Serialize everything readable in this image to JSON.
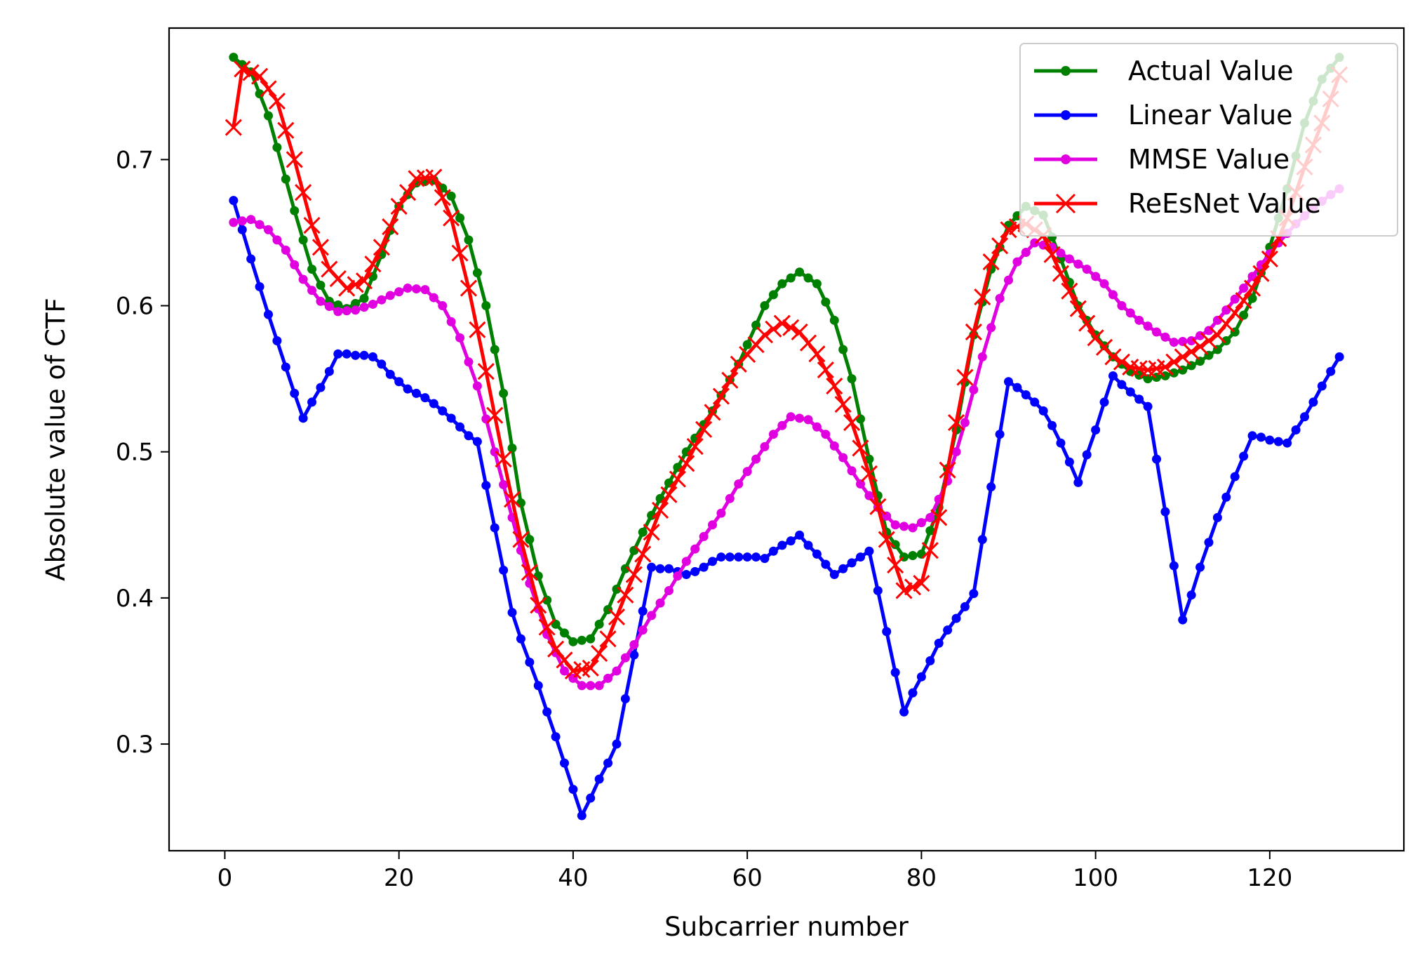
{
  "chart_data": {
    "type": "line",
    "title": "",
    "xlabel": "Subcarrier number",
    "ylabel": "Absolute value of CTF",
    "xlim": [
      -6.4,
      135.4
    ],
    "ylim": [
      0.227,
      0.79
    ],
    "xticks": [
      0,
      20,
      40,
      60,
      80,
      100,
      120
    ],
    "xtick_labels": [
      "0",
      "20",
      "40",
      "60",
      "80",
      "100",
      "120"
    ],
    "yticks": [
      0.3,
      0.4,
      0.5,
      0.6,
      0.7
    ],
    "ytick_labels": [
      "0.3",
      "0.4",
      "0.5",
      "0.6",
      "0.7"
    ],
    "grid": false,
    "legend": "top-right",
    "x_start": 1,
    "x_step": 1,
    "series": [
      {
        "name": "Actual Value",
        "color": "#008000",
        "marker": "dot",
        "anchors": [
          [
            1,
            0.77
          ],
          [
            3,
            0.76
          ],
          [
            5,
            0.73
          ],
          [
            8,
            0.665
          ],
          [
            10,
            0.625
          ],
          [
            12,
            0.603
          ],
          [
            14,
            0.598
          ],
          [
            16,
            0.605
          ],
          [
            18,
            0.635
          ],
          [
            20,
            0.668
          ],
          [
            22,
            0.684
          ],
          [
            24,
            0.686
          ],
          [
            26,
            0.675
          ],
          [
            28,
            0.645
          ],
          [
            30,
            0.6
          ],
          [
            32,
            0.54
          ],
          [
            34,
            0.465
          ],
          [
            36,
            0.415
          ],
          [
            38,
            0.382
          ],
          [
            40,
            0.37
          ],
          [
            42,
            0.372
          ],
          [
            44,
            0.392
          ],
          [
            46,
            0.42
          ],
          [
            48,
            0.445
          ],
          [
            50,
            0.468
          ],
          [
            53,
            0.5
          ],
          [
            56,
            0.528
          ],
          [
            59,
            0.56
          ],
          [
            62,
            0.6
          ],
          [
            64,
            0.615
          ],
          [
            66,
            0.623
          ],
          [
            68,
            0.615
          ],
          [
            70,
            0.59
          ],
          [
            72,
            0.55
          ],
          [
            74,
            0.495
          ],
          [
            76,
            0.445
          ],
          [
            78,
            0.428
          ],
          [
            80,
            0.43
          ],
          [
            82,
            0.462
          ],
          [
            84,
            0.515
          ],
          [
            86,
            0.58
          ],
          [
            88,
            0.625
          ],
          [
            90,
            0.655
          ],
          [
            92,
            0.668
          ],
          [
            94,
            0.662
          ],
          [
            96,
            0.632
          ],
          [
            98,
            0.6
          ],
          [
            100,
            0.58
          ],
          [
            102,
            0.565
          ],
          [
            104,
            0.555
          ],
          [
            106,
            0.55
          ],
          [
            108,
            0.552
          ],
          [
            110,
            0.556
          ],
          [
            112,
            0.562
          ],
          [
            114,
            0.57
          ],
          [
            116,
            0.582
          ],
          [
            118,
            0.605
          ],
          [
            120,
            0.64
          ],
          [
            122,
            0.68
          ],
          [
            124,
            0.725
          ],
          [
            126,
            0.755
          ],
          [
            128,
            0.77
          ]
        ]
      },
      {
        "name": "Linear Value",
        "color": "#0000ff",
        "marker": "dot",
        "anchors": [
          [
            1,
            0.672
          ],
          [
            2,
            0.652
          ],
          [
            3,
            0.632
          ],
          [
            4,
            0.613
          ],
          [
            5,
            0.594
          ],
          [
            6,
            0.576
          ],
          [
            7,
            0.558
          ],
          [
            8,
            0.54
          ],
          [
            9,
            0.523
          ],
          [
            10,
            0.534
          ],
          [
            11,
            0.544
          ],
          [
            12,
            0.555
          ],
          [
            13,
            0.567
          ],
          [
            14,
            0.567
          ],
          [
            15,
            0.566
          ],
          [
            16,
            0.566
          ],
          [
            17,
            0.565
          ],
          [
            18,
            0.56
          ],
          [
            19,
            0.553
          ],
          [
            20,
            0.548
          ],
          [
            21,
            0.543
          ],
          [
            22,
            0.54
          ],
          [
            23,
            0.537
          ],
          [
            24,
            0.533
          ],
          [
            25,
            0.528
          ],
          [
            26,
            0.523
          ],
          [
            27,
            0.517
          ],
          [
            28,
            0.511
          ],
          [
            29,
            0.507
          ],
          [
            30,
            0.477
          ],
          [
            31,
            0.448
          ],
          [
            32,
            0.419
          ],
          [
            33,
            0.39
          ],
          [
            34,
            0.372
          ],
          [
            35,
            0.356
          ],
          [
            36,
            0.34
          ],
          [
            37,
            0.322
          ],
          [
            38,
            0.305
          ],
          [
            39,
            0.287
          ],
          [
            40,
            0.269
          ],
          [
            41,
            0.251
          ],
          [
            42,
            0.263
          ],
          [
            43,
            0.276
          ],
          [
            44,
            0.287
          ],
          [
            45,
            0.3
          ],
          [
            46,
            0.331
          ],
          [
            47,
            0.361
          ],
          [
            48,
            0.391
          ],
          [
            49,
            0.421
          ],
          [
            50,
            0.42
          ],
          [
            51,
            0.42
          ],
          [
            52,
            0.418
          ],
          [
            53,
            0.416
          ],
          [
            54,
            0.418
          ],
          [
            55,
            0.421
          ],
          [
            56,
            0.425
          ],
          [
            57,
            0.428
          ],
          [
            58,
            0.428
          ],
          [
            59,
            0.428
          ],
          [
            60,
            0.428
          ],
          [
            61,
            0.428
          ],
          [
            62,
            0.427
          ],
          [
            63,
            0.432
          ],
          [
            64,
            0.436
          ],
          [
            65,
            0.439
          ],
          [
            66,
            0.443
          ],
          [
            67,
            0.436
          ],
          [
            68,
            0.43
          ],
          [
            69,
            0.423
          ],
          [
            70,
            0.416
          ],
          [
            71,
            0.42
          ],
          [
            72,
            0.424
          ],
          [
            73,
            0.428
          ],
          [
            74,
            0.432
          ],
          [
            75,
            0.405
          ],
          [
            76,
            0.377
          ],
          [
            77,
            0.349
          ],
          [
            78,
            0.322
          ],
          [
            79,
            0.335
          ],
          [
            80,
            0.346
          ],
          [
            81,
            0.357
          ],
          [
            82,
            0.369
          ],
          [
            83,
            0.378
          ],
          [
            84,
            0.386
          ],
          [
            85,
            0.394
          ],
          [
            86,
            0.403
          ],
          [
            87,
            0.44
          ],
          [
            88,
            0.476
          ],
          [
            89,
            0.512
          ],
          [
            90,
            0.548
          ],
          [
            91,
            0.544
          ],
          [
            92,
            0.539
          ],
          [
            93,
            0.534
          ],
          [
            94,
            0.528
          ],
          [
            95,
            0.518
          ],
          [
            96,
            0.506
          ],
          [
            97,
            0.493
          ],
          [
            98,
            0.479
          ],
          [
            99,
            0.498
          ],
          [
            100,
            0.515
          ],
          [
            101,
            0.534
          ],
          [
            102,
            0.552
          ],
          [
            103,
            0.546
          ],
          [
            104,
            0.541
          ],
          [
            105,
            0.536
          ],
          [
            106,
            0.531
          ],
          [
            107,
            0.495
          ],
          [
            108,
            0.459
          ],
          [
            109,
            0.422
          ],
          [
            110,
            0.385
          ],
          [
            111,
            0.402
          ],
          [
            112,
            0.421
          ],
          [
            113,
            0.438
          ],
          [
            114,
            0.455
          ],
          [
            115,
            0.469
          ],
          [
            116,
            0.483
          ],
          [
            117,
            0.497
          ],
          [
            118,
            0.511
          ],
          [
            119,
            0.51
          ],
          [
            120,
            0.508
          ],
          [
            121,
            0.507
          ],
          [
            122,
            0.506
          ],
          [
            123,
            0.515
          ],
          [
            124,
            0.524
          ],
          [
            125,
            0.534
          ],
          [
            126,
            0.545
          ],
          [
            127,
            0.555
          ],
          [
            128,
            0.565
          ]
        ]
      },
      {
        "name": "MMSE Value",
        "color": "#e000e0",
        "marker": "dot",
        "anchors": [
          [
            1,
            0.657
          ],
          [
            3,
            0.659
          ],
          [
            5,
            0.652
          ],
          [
            7,
            0.638
          ],
          [
            9,
            0.618
          ],
          [
            11,
            0.603
          ],
          [
            13,
            0.596
          ],
          [
            15,
            0.597
          ],
          [
            17,
            0.601
          ],
          [
            19,
            0.607
          ],
          [
            21,
            0.612
          ],
          [
            23,
            0.611
          ],
          [
            25,
            0.6
          ],
          [
            27,
            0.578
          ],
          [
            29,
            0.545
          ],
          [
            31,
            0.5
          ],
          [
            33,
            0.455
          ],
          [
            35,
            0.41
          ],
          [
            37,
            0.375
          ],
          [
            39,
            0.35
          ],
          [
            41,
            0.34
          ],
          [
            43,
            0.34
          ],
          [
            45,
            0.35
          ],
          [
            47,
            0.368
          ],
          [
            49,
            0.388
          ],
          [
            51,
            0.405
          ],
          [
            53,
            0.425
          ],
          [
            55,
            0.442
          ],
          [
            57,
            0.458
          ],
          [
            59,
            0.478
          ],
          [
            61,
            0.495
          ],
          [
            63,
            0.512
          ],
          [
            65,
            0.524
          ],
          [
            67,
            0.522
          ],
          [
            69,
            0.512
          ],
          [
            71,
            0.496
          ],
          [
            73,
            0.478
          ],
          [
            75,
            0.462
          ],
          [
            77,
            0.45
          ],
          [
            79,
            0.448
          ],
          [
            81,
            0.455
          ],
          [
            83,
            0.48
          ],
          [
            85,
            0.52
          ],
          [
            87,
            0.565
          ],
          [
            89,
            0.605
          ],
          [
            91,
            0.63
          ],
          [
            93,
            0.643
          ],
          [
            95,
            0.64
          ],
          [
            97,
            0.632
          ],
          [
            99,
            0.625
          ],
          [
            101,
            0.615
          ],
          [
            103,
            0.6
          ],
          [
            105,
            0.59
          ],
          [
            107,
            0.582
          ],
          [
            109,
            0.575
          ],
          [
            111,
            0.576
          ],
          [
            113,
            0.583
          ],
          [
            115,
            0.597
          ],
          [
            117,
            0.612
          ],
          [
            119,
            0.628
          ],
          [
            121,
            0.643
          ],
          [
            123,
            0.656
          ],
          [
            125,
            0.667
          ],
          [
            127,
            0.676
          ],
          [
            128,
            0.68
          ]
        ]
      },
      {
        "name": "ReEsNet Value",
        "color": "#ff0000",
        "marker": "x",
        "anchors": [
          [
            1,
            0.722
          ],
          [
            2,
            0.762
          ],
          [
            4,
            0.757
          ],
          [
            6,
            0.74
          ],
          [
            8,
            0.7
          ],
          [
            10,
            0.655
          ],
          [
            12,
            0.625
          ],
          [
            14,
            0.612
          ],
          [
            16,
            0.617
          ],
          [
            18,
            0.64
          ],
          [
            20,
            0.668
          ],
          [
            22,
            0.687
          ],
          [
            24,
            0.688
          ],
          [
            26,
            0.66
          ],
          [
            28,
            0.612
          ],
          [
            30,
            0.555
          ],
          [
            32,
            0.495
          ],
          [
            34,
            0.44
          ],
          [
            36,
            0.395
          ],
          [
            38,
            0.365
          ],
          [
            40,
            0.35
          ],
          [
            42,
            0.352
          ],
          [
            44,
            0.372
          ],
          [
            46,
            0.402
          ],
          [
            48,
            0.43
          ],
          [
            50,
            0.46
          ],
          [
            53,
            0.492
          ],
          [
            56,
            0.527
          ],
          [
            59,
            0.56
          ],
          [
            62,
            0.58
          ],
          [
            64,
            0.588
          ],
          [
            66,
            0.582
          ],
          [
            68,
            0.567
          ],
          [
            70,
            0.545
          ],
          [
            72,
            0.52
          ],
          [
            74,
            0.485
          ],
          [
            76,
            0.44
          ],
          [
            78,
            0.405
          ],
          [
            80,
            0.41
          ],
          [
            82,
            0.455
          ],
          [
            84,
            0.52
          ],
          [
            86,
            0.582
          ],
          [
            88,
            0.63
          ],
          [
            90,
            0.652
          ],
          [
            92,
            0.656
          ],
          [
            94,
            0.648
          ],
          [
            96,
            0.622
          ],
          [
            98,
            0.598
          ],
          [
            100,
            0.578
          ],
          [
            102,
            0.565
          ],
          [
            104,
            0.558
          ],
          [
            106,
            0.556
          ],
          [
            108,
            0.558
          ],
          [
            110,
            0.565
          ],
          [
            112,
            0.572
          ],
          [
            114,
            0.58
          ],
          [
            116,
            0.595
          ],
          [
            118,
            0.612
          ],
          [
            120,
            0.632
          ],
          [
            122,
            0.66
          ],
          [
            124,
            0.695
          ],
          [
            126,
            0.725
          ],
          [
            128,
            0.758
          ]
        ]
      }
    ]
  }
}
